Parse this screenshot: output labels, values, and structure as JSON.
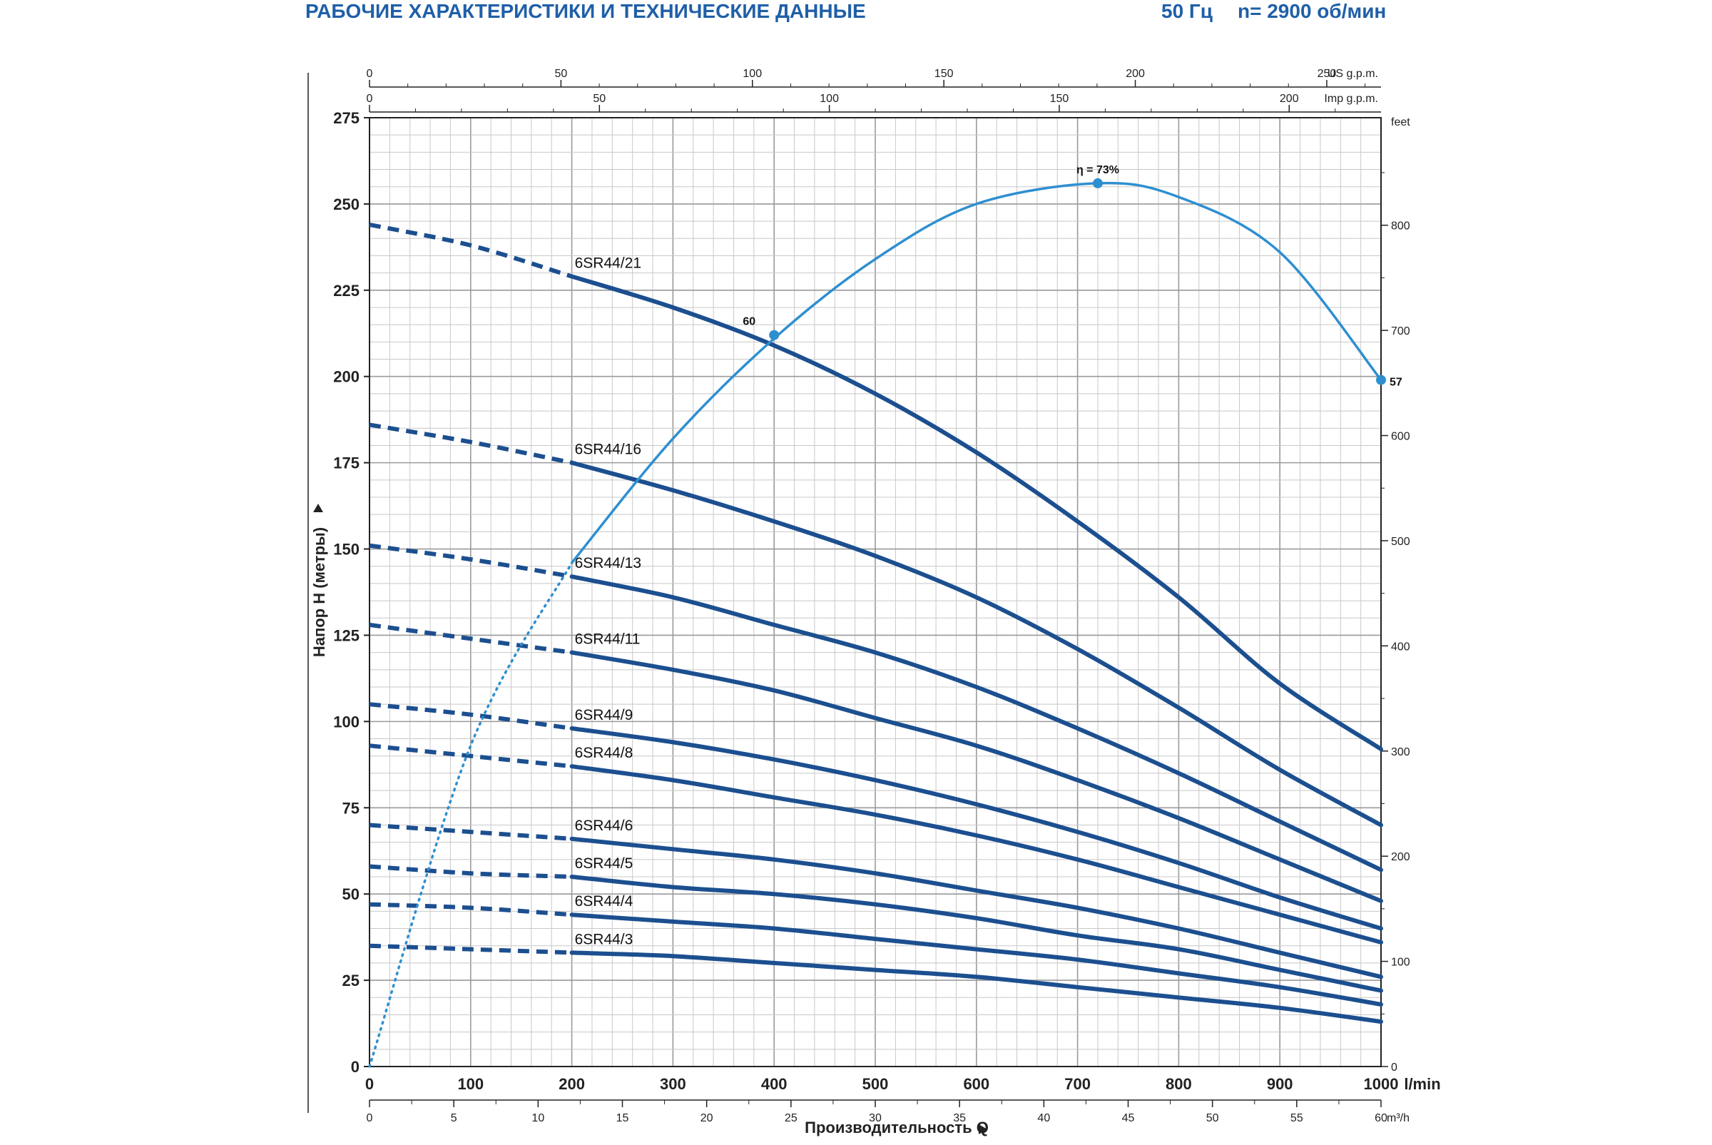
{
  "header": {
    "title": "РАБОЧИЕ ХАРАКТЕРИСТИКИ И ТЕХНИЧЕСКИЕ ДАННЫЕ",
    "freq": "50 Гц",
    "speed": "n= 2900 об/мин"
  },
  "chart_data": {
    "type": "line",
    "xlabel": "Производительность Q",
    "ylabel": "Напор H (метры)",
    "x_unit": "l/min",
    "xlim": [
      0,
      1000
    ],
    "ylim": [
      0,
      275
    ],
    "x_ticks": [
      0,
      100,
      200,
      300,
      400,
      500,
      600,
      700,
      800,
      900,
      1000
    ],
    "y_ticks": [
      0,
      25,
      50,
      75,
      100,
      125,
      150,
      175,
      200,
      225,
      250,
      275
    ],
    "secondary_axes": {
      "us_gpm": {
        "label": "US g.p.m.",
        "ticks": [
          0,
          50,
          100,
          150,
          200,
          250
        ]
      },
      "imp_gpm": {
        "label": "Imp g.p.m.",
        "ticks": [
          0,
          50,
          100,
          150,
          200
        ]
      },
      "m3h": {
        "label": "m³/h",
        "ticks": [
          0,
          5,
          10,
          15,
          20,
          25,
          30,
          35,
          40,
          45,
          50,
          55,
          60
        ]
      },
      "feet": {
        "label": "feet",
        "ticks": [
          0,
          100,
          200,
          300,
          400,
          500,
          600,
          700,
          800
        ]
      }
    },
    "grid": true,
    "series": [
      {
        "name": "6SR44/21",
        "x": [
          0,
          100,
          200,
          300,
          400,
          500,
          600,
          700,
          800,
          900,
          1000
        ],
        "y": [
          244,
          238,
          229,
          220,
          209,
          195,
          178,
          158,
          136,
          111,
          92
        ]
      },
      {
        "name": "6SR44/16",
        "x": [
          0,
          100,
          200,
          300,
          400,
          500,
          600,
          700,
          800,
          900,
          1000
        ],
        "y": [
          186,
          181,
          175,
          167,
          158,
          148,
          136,
          121,
          104,
          86,
          70
        ]
      },
      {
        "name": "6SR44/13",
        "x": [
          0,
          100,
          200,
          300,
          400,
          500,
          600,
          700,
          800,
          900,
          1000
        ],
        "y": [
          151,
          147,
          142,
          136,
          128,
          120,
          110,
          98,
          85,
          71,
          57
        ]
      },
      {
        "name": "6SR44/11",
        "x": [
          0,
          100,
          200,
          300,
          400,
          500,
          600,
          700,
          800,
          900,
          1000
        ],
        "y": [
          128,
          124,
          120,
          115,
          109,
          101,
          93,
          83,
          72,
          60,
          48
        ]
      },
      {
        "name": "6SR44/9",
        "x": [
          0,
          100,
          200,
          300,
          400,
          500,
          600,
          700,
          800,
          900,
          1000
        ],
        "y": [
          105,
          102,
          98,
          94,
          89,
          83,
          76,
          68,
          59,
          49,
          40
        ]
      },
      {
        "name": "6SR44/8",
        "x": [
          0,
          100,
          200,
          300,
          400,
          500,
          600,
          700,
          800,
          900,
          1000
        ],
        "y": [
          93,
          90,
          87,
          83,
          78,
          73,
          67,
          60,
          52,
          44,
          36
        ]
      },
      {
        "name": "6SR44/6",
        "x": [
          0,
          100,
          200,
          300,
          400,
          500,
          600,
          700,
          800,
          900,
          1000
        ],
        "y": [
          70,
          68,
          66,
          63,
          60,
          56,
          51,
          46,
          40,
          33,
          26
        ]
      },
      {
        "name": "6SR44/5",
        "x": [
          0,
          100,
          200,
          300,
          400,
          500,
          600,
          700,
          800,
          900,
          1000
        ],
        "y": [
          58,
          56,
          55,
          52,
          50,
          47,
          43,
          38,
          34,
          28,
          22
        ]
      },
      {
        "name": "6SR44/4",
        "x": [
          0,
          100,
          200,
          300,
          400,
          500,
          600,
          700,
          800,
          900,
          1000
        ],
        "y": [
          47,
          46,
          44,
          42,
          40,
          37,
          34,
          31,
          27,
          23,
          18
        ]
      },
      {
        "name": "6SR44/3",
        "x": [
          0,
          100,
          200,
          300,
          400,
          500,
          600,
          700,
          800,
          900,
          1000
        ],
        "y": [
          35,
          34,
          33,
          32,
          30,
          28,
          26,
          23,
          20,
          17,
          13
        ]
      }
    ],
    "efficiency": {
      "x": [
        0,
        100,
        200,
        300,
        400,
        500,
        600,
        720,
        800,
        900,
        1000
      ],
      "y": [
        0,
        93,
        146,
        182,
        211,
        234,
        250,
        256,
        252,
        236,
        199
      ],
      "dotted_until_x": 200,
      "markers": [
        {
          "x": 400,
          "y": 212,
          "label": "60"
        },
        {
          "x": 720,
          "y": 256,
          "label": "η = 73%"
        },
        {
          "x": 1000,
          "y": 199,
          "label": "57"
        }
      ]
    }
  }
}
